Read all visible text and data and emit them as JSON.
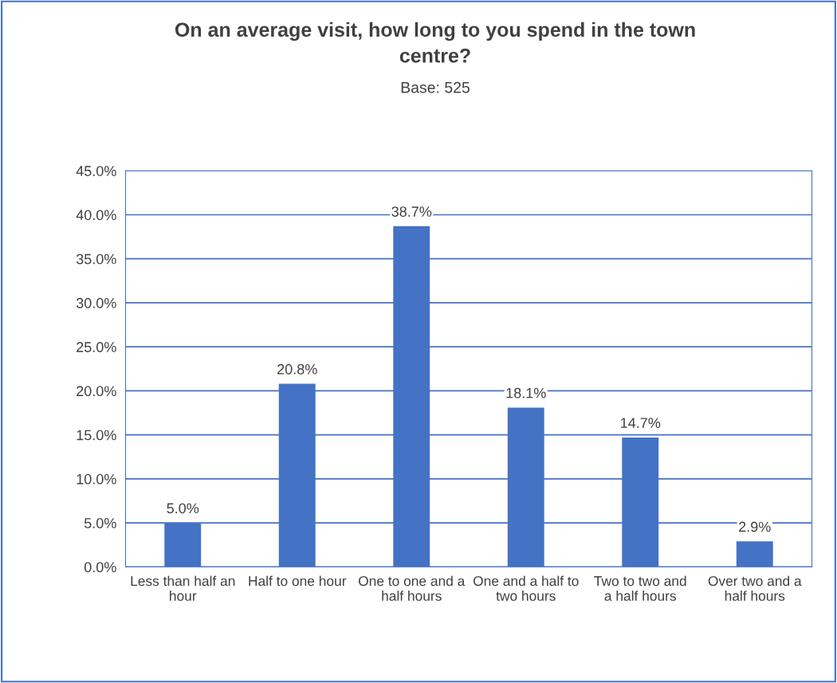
{
  "chart_data": {
    "type": "bar",
    "title": "On an average visit, how long to you spend in the town\ncentre?",
    "subtitle": "Base: 525",
    "categories": [
      "Less than half an\nhour",
      "Half to one hour",
      "One to one and a\nhalf hours",
      "One and a half to\ntwo hours",
      "Two to two and\na half hours",
      "Over two and a\nhalf hours"
    ],
    "values": [
      5.0,
      20.8,
      38.7,
      18.1,
      14.7,
      2.9
    ],
    "value_labels": [
      "5.0%",
      "20.8%",
      "38.7%",
      "18.1%",
      "14.7%",
      "2.9%"
    ],
    "color": "#4472c4",
    "ylim": [
      0,
      45
    ],
    "yticks": [
      {
        "value": 0,
        "label": "0.0%"
      },
      {
        "value": 5,
        "label": "5.0%"
      },
      {
        "value": 10,
        "label": "10.0%"
      },
      {
        "value": 15,
        "label": "15.0%"
      },
      {
        "value": 20,
        "label": "20.0%"
      },
      {
        "value": 25,
        "label": "25.0%"
      },
      {
        "value": 30,
        "label": "30.0%"
      },
      {
        "value": 35,
        "label": "35.0%"
      },
      {
        "value": 40,
        "label": "40.0%"
      },
      {
        "value": 45,
        "label": "45.0%"
      }
    ],
    "grid": "y",
    "legend": false
  }
}
